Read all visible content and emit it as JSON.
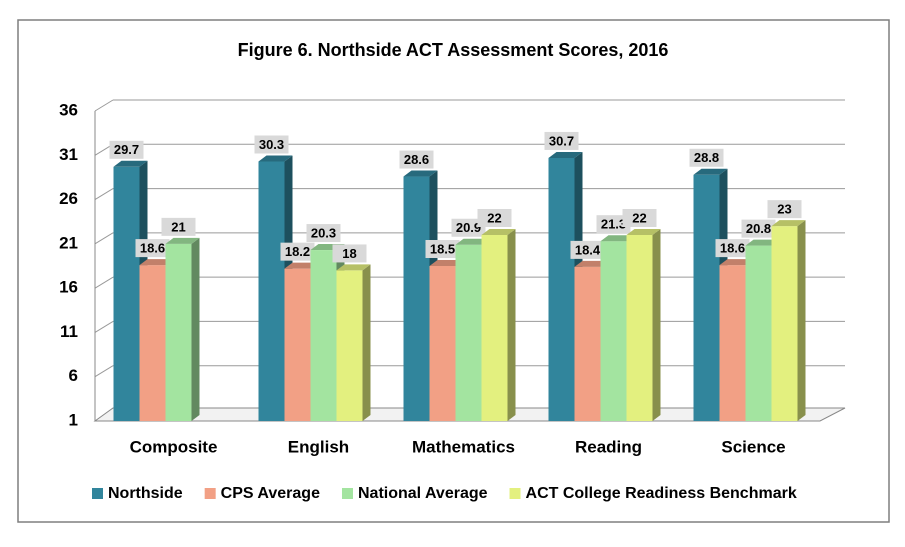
{
  "chart_data": {
    "type": "bar3d",
    "title": "Figure 6. Northside ACT Assessment Scores, 2016",
    "categories": [
      "Composite",
      "English",
      "Mathematics",
      "Reading",
      "Science"
    ],
    "series": [
      {
        "name": "Northside",
        "color": "#31859c",
        "values": [
          29.7,
          30.3,
          28.6,
          30.7,
          28.8
        ]
      },
      {
        "name": "CPS Average",
        "color": "#f2a085",
        "values": [
          18.6,
          18.2,
          18.5,
          18.4,
          18.6
        ]
      },
      {
        "name": "National Average",
        "color": "#a3e4a0",
        "values": [
          21,
          20.3,
          20.9,
          21.3,
          20.8
        ]
      },
      {
        "name": "ACT College Readiness Benchmark",
        "color": "#e3f07f",
        "values": [
          null,
          18,
          22,
          22,
          23
        ]
      }
    ],
    "ylim": [
      1,
      36
    ],
    "yticks": [
      1,
      6,
      11,
      16,
      21,
      26,
      31,
      36
    ],
    "grid": true,
    "legend": "bottom"
  }
}
